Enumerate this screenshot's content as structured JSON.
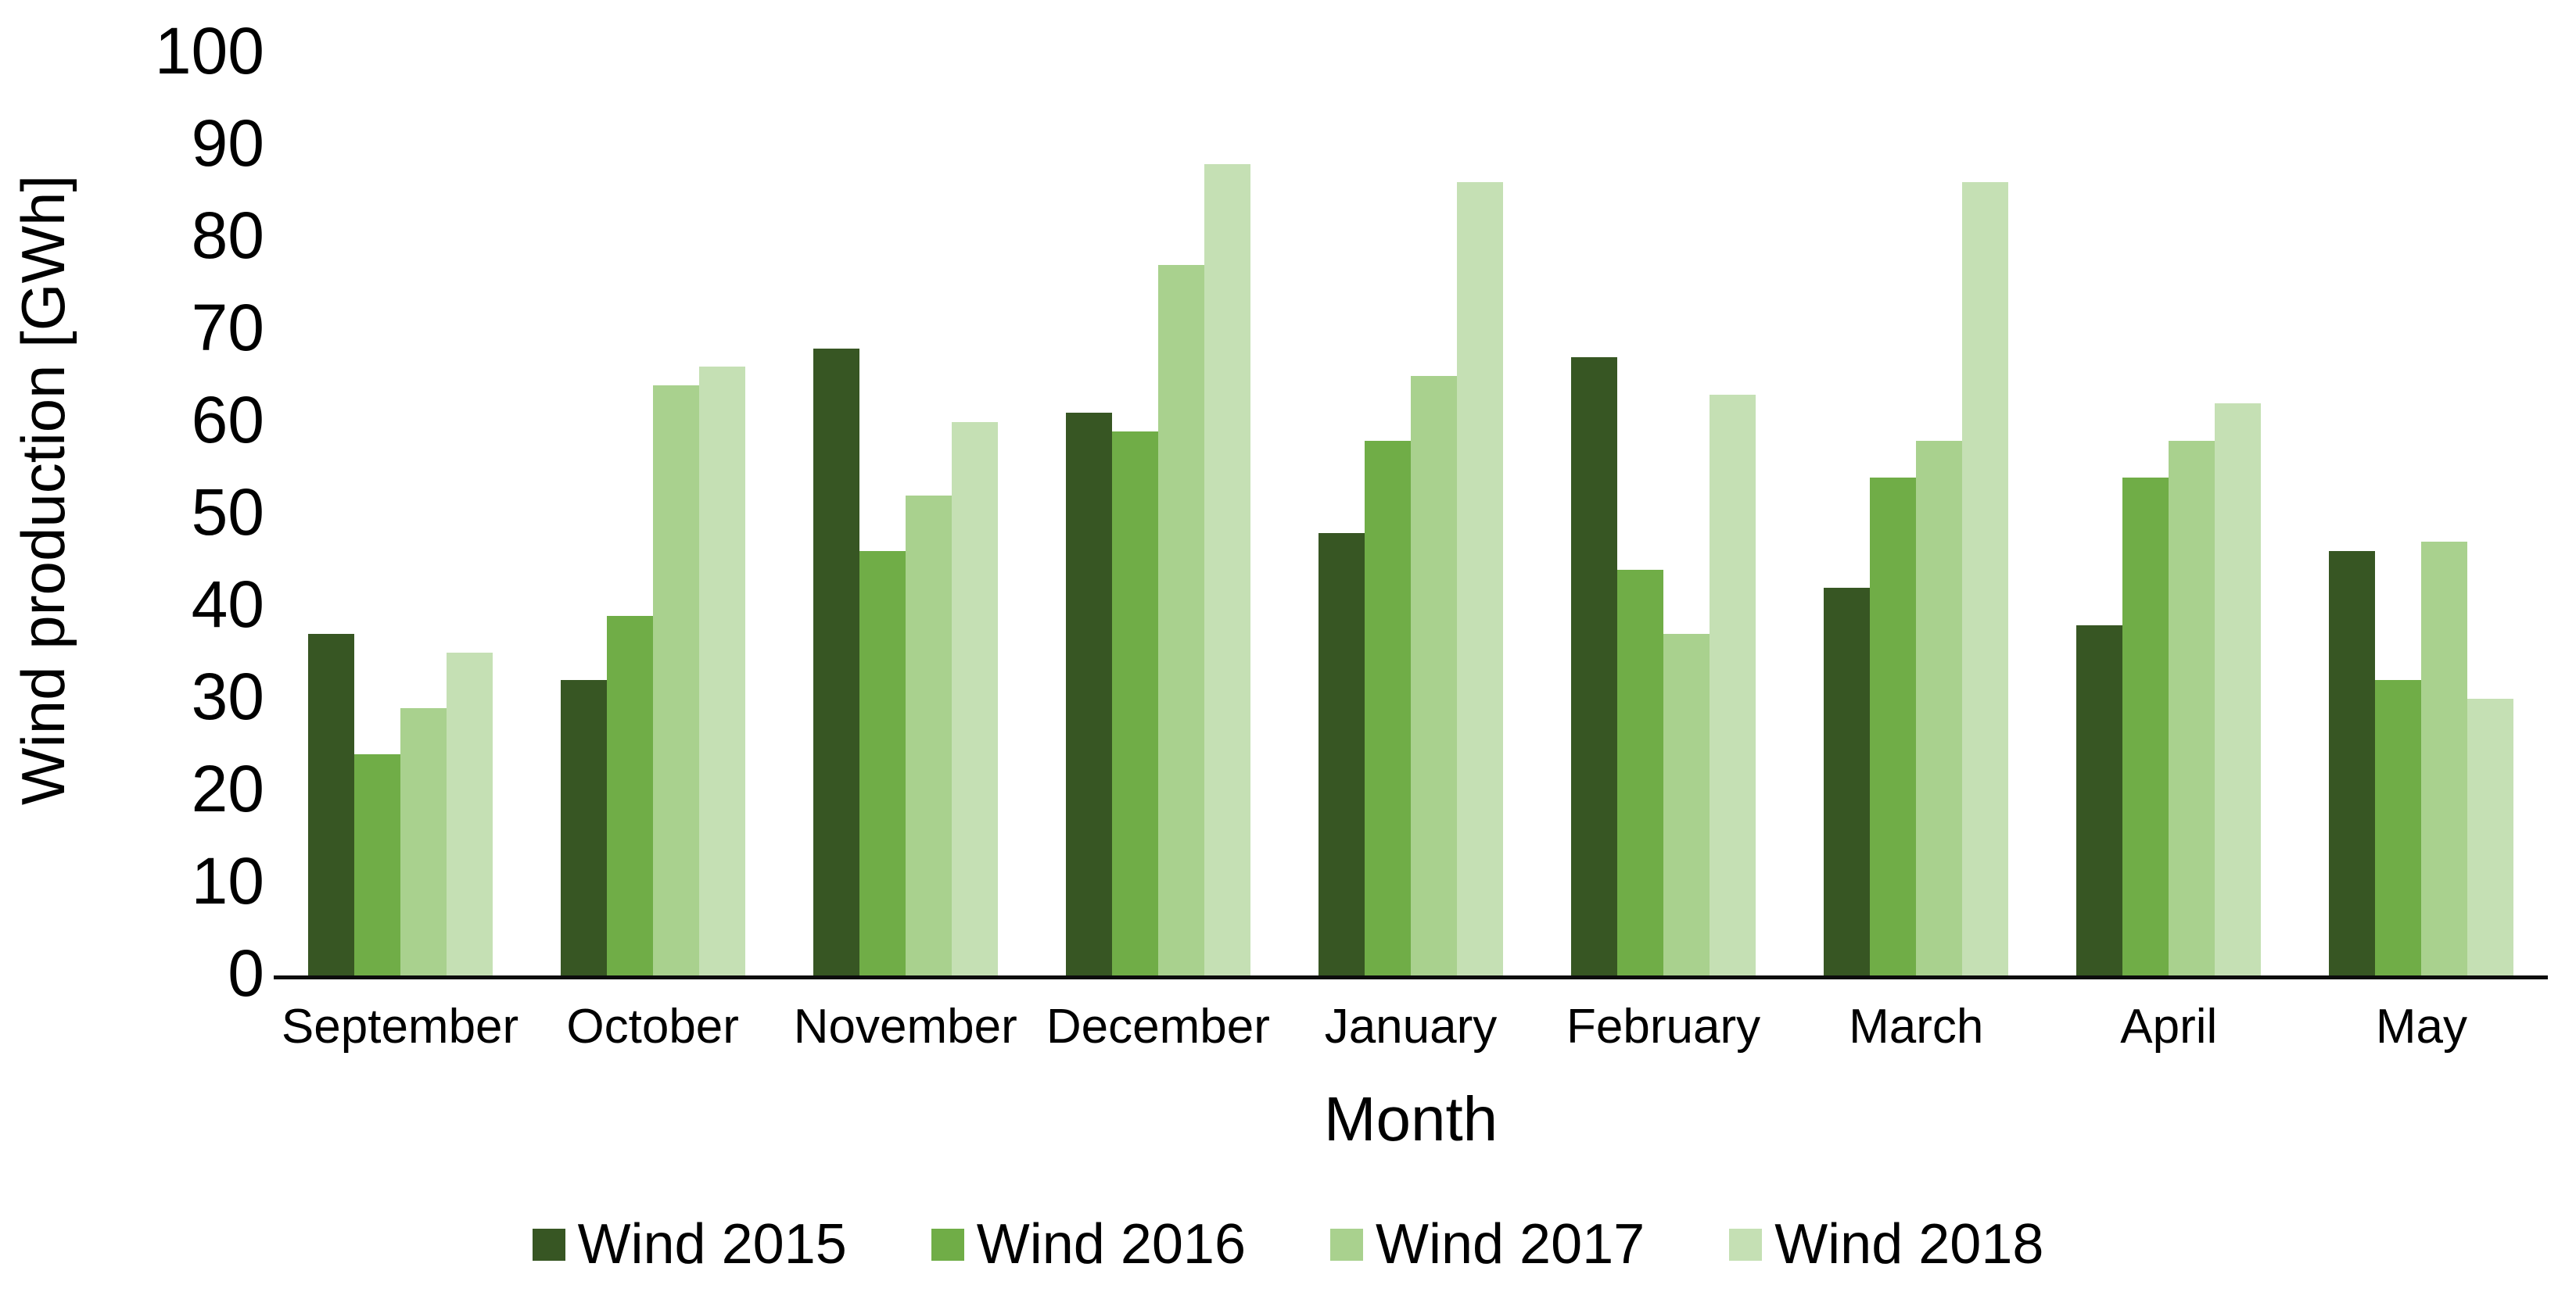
{
  "chart_data": {
    "type": "bar",
    "title": "",
    "xlabel": "Month",
    "ylabel": "Wind production [GWh]",
    "categories": [
      "September",
      "October",
      "November",
      "December",
      "January",
      "February",
      "March",
      "April",
      "May"
    ],
    "series": [
      {
        "name": "Wind 2015",
        "color": "#375623",
        "values": [
          37,
          32,
          68,
          61,
          48,
          67,
          42,
          38,
          46
        ]
      },
      {
        "name": "Wind 2016",
        "color": "#70AD47",
        "values": [
          24,
          39,
          46,
          59,
          58,
          44,
          54,
          54,
          32
        ]
      },
      {
        "name": "Wind 2017",
        "color": "#A9D18E",
        "values": [
          29,
          64,
          52,
          77,
          65,
          37,
          58,
          58,
          47
        ]
      },
      {
        "name": "Wind 2018",
        "color": "#C5E0B4",
        "values": [
          35,
          66,
          60,
          88,
          86,
          63,
          86,
          62,
          30
        ]
      }
    ],
    "ylim": [
      0,
      100
    ],
    "yticks": [
      0,
      10,
      20,
      30,
      40,
      50,
      60,
      70,
      80,
      90,
      100
    ],
    "grid": false,
    "legend_position": "bottom",
    "axis_line_color": "#0d0d0d",
    "text_color": "#000000"
  }
}
